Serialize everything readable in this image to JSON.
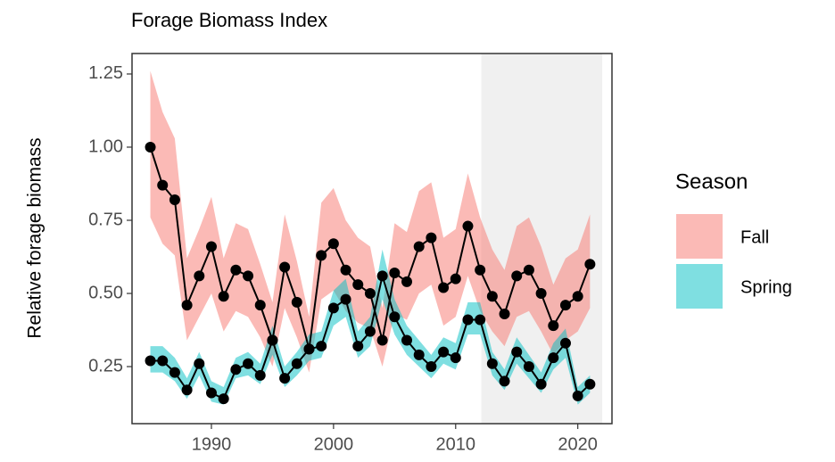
{
  "chart_data": {
    "type": "line",
    "title": "Forage Biomass Index",
    "y_label": "Relative forage biomass",
    "legend_title": "Season",
    "x": [
      1985,
      1986,
      1987,
      1988,
      1989,
      1990,
      1991,
      1992,
      1993,
      1994,
      1995,
      1996,
      1997,
      1998,
      1999,
      2000,
      2001,
      2002,
      2003,
      2004,
      2005,
      2006,
      2007,
      2008,
      2009,
      2010,
      2011,
      2012,
      2013,
      2014,
      2015,
      2016,
      2017,
      2018,
      2019,
      2020,
      2021
    ],
    "series": [
      {
        "name": "Fall",
        "color": "#f8766d",
        "values": [
          1.0,
          0.87,
          0.82,
          0.46,
          0.56,
          0.66,
          0.49,
          0.58,
          0.56,
          0.46,
          0.34,
          0.59,
          0.47,
          0.31,
          0.63,
          0.67,
          0.58,
          0.53,
          0.5,
          0.34,
          0.57,
          0.54,
          0.66,
          0.69,
          0.52,
          0.55,
          0.73,
          0.58,
          0.49,
          0.43,
          0.56,
          0.58,
          0.5,
          0.39,
          0.46,
          0.49,
          0.6
        ],
        "upper": [
          1.26,
          1.12,
          1.03,
          0.62,
          0.72,
          0.83,
          0.62,
          0.74,
          0.72,
          0.6,
          0.47,
          0.77,
          0.61,
          0.42,
          0.81,
          0.86,
          0.75,
          0.69,
          0.66,
          0.45,
          0.74,
          0.71,
          0.85,
          0.88,
          0.69,
          0.72,
          0.91,
          0.76,
          0.65,
          0.58,
          0.73,
          0.76,
          0.66,
          0.53,
          0.62,
          0.65,
          0.77
        ],
        "lower": [
          0.76,
          0.67,
          0.63,
          0.34,
          0.42,
          0.5,
          0.37,
          0.44,
          0.42,
          0.35,
          0.25,
          0.45,
          0.35,
          0.23,
          0.48,
          0.51,
          0.44,
          0.4,
          0.38,
          0.25,
          0.43,
          0.41,
          0.5,
          0.53,
          0.39,
          0.42,
          0.56,
          0.44,
          0.37,
          0.32,
          0.42,
          0.44,
          0.37,
          0.29,
          0.34,
          0.37,
          0.45
        ]
      },
      {
        "name": "Spring",
        "color": "#00bfc4",
        "values": [
          0.27,
          0.27,
          0.23,
          0.17,
          0.26,
          0.16,
          0.14,
          0.24,
          0.26,
          0.22,
          0.34,
          0.21,
          0.26,
          0.31,
          0.32,
          0.45,
          0.48,
          0.32,
          0.37,
          0.56,
          0.42,
          0.34,
          0.29,
          0.25,
          0.3,
          0.28,
          0.41,
          0.41,
          0.26,
          0.2,
          0.3,
          0.25,
          0.19,
          0.28,
          0.33,
          0.15,
          0.19
        ],
        "upper": [
          0.32,
          0.32,
          0.28,
          0.21,
          0.3,
          0.2,
          0.18,
          0.28,
          0.3,
          0.26,
          0.39,
          0.25,
          0.3,
          0.36,
          0.37,
          0.51,
          0.55,
          0.37,
          0.42,
          0.65,
          0.48,
          0.39,
          0.34,
          0.29,
          0.35,
          0.33,
          0.47,
          0.47,
          0.3,
          0.24,
          0.35,
          0.29,
          0.23,
          0.33,
          0.38,
          0.18,
          0.22
        ],
        "lower": [
          0.23,
          0.23,
          0.2,
          0.14,
          0.22,
          0.13,
          0.12,
          0.21,
          0.22,
          0.19,
          0.29,
          0.18,
          0.22,
          0.27,
          0.28,
          0.39,
          0.42,
          0.28,
          0.32,
          0.48,
          0.36,
          0.29,
          0.25,
          0.21,
          0.26,
          0.24,
          0.36,
          0.36,
          0.22,
          0.17,
          0.26,
          0.21,
          0.16,
          0.24,
          0.28,
          0.12,
          0.16
        ]
      }
    ],
    "shaded_xrange": [
      2012.1,
      2022
    ],
    "xlim": [
      1983.5,
      2022.8
    ],
    "ylim": [
      0.055,
      1.32
    ],
    "xticks": [
      1990,
      2000,
      2010,
      2020
    ],
    "yticks": [
      {
        "value": 0.25,
        "label": "0.25"
      },
      {
        "value": 0.5,
        "label": "0.50"
      },
      {
        "value": 0.75,
        "label": "0.75"
      },
      {
        "value": 1,
        "label": "1.00"
      },
      1.25
    ]
  }
}
